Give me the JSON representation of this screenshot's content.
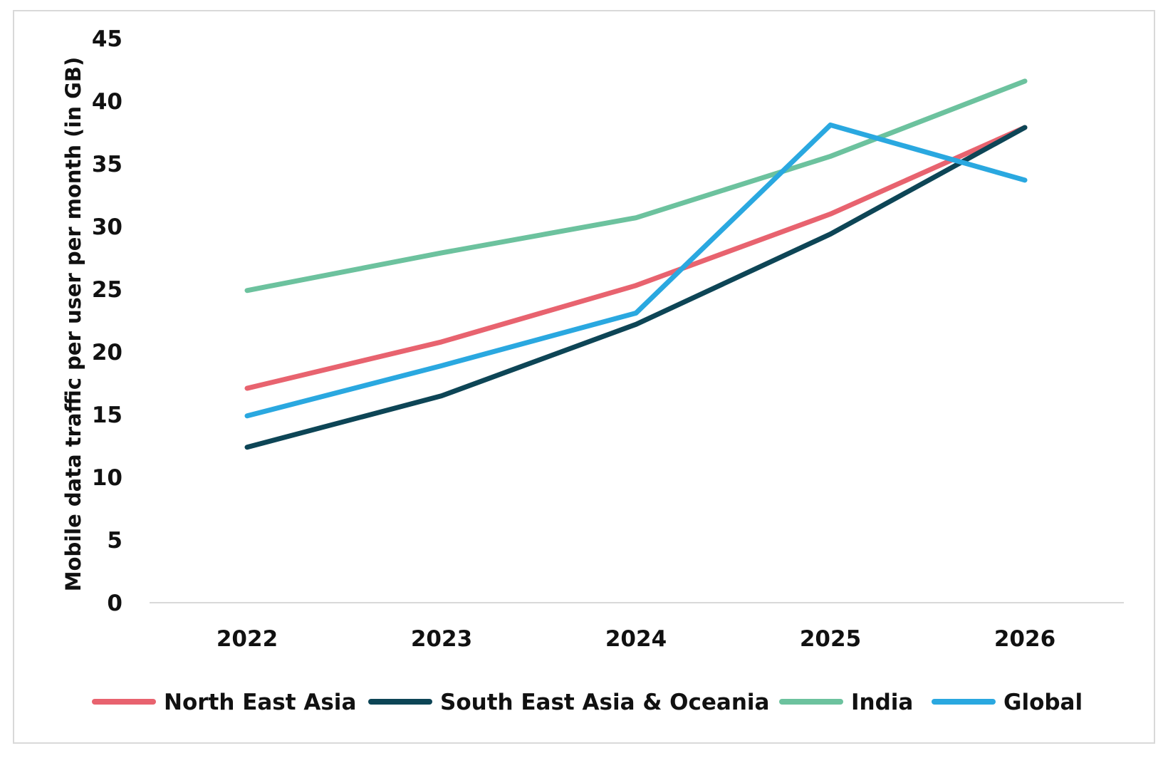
{
  "chart_data": {
    "type": "line",
    "title": "",
    "xlabel": "",
    "ylabel": "Mobile data traffic per user per month (in GB)",
    "categories": [
      "2022",
      "2023",
      "2024",
      "2025",
      "2026"
    ],
    "ylim": [
      0,
      45
    ],
    "yticks": [
      0,
      5,
      10,
      15,
      20,
      25,
      30,
      35,
      40,
      45
    ],
    "grid": false,
    "legend_position": "bottom",
    "series": [
      {
        "name": "North East Asia",
        "color": "#e8636f",
        "values": [
          17.1,
          20.8,
          25.3,
          31.0,
          37.9
        ]
      },
      {
        "name": "South East Asia & Oceania",
        "color": "#0d4556",
        "values": [
          12.4,
          16.5,
          22.2,
          29.4,
          37.9
        ]
      },
      {
        "name": "India",
        "color": "#6cc29e",
        "values": [
          24.9,
          27.9,
          30.7,
          35.6,
          41.6
        ]
      },
      {
        "name": "Global",
        "color": "#2aa8e0",
        "values": [
          14.9,
          18.9,
          23.1,
          38.1,
          33.7
        ]
      }
    ]
  }
}
